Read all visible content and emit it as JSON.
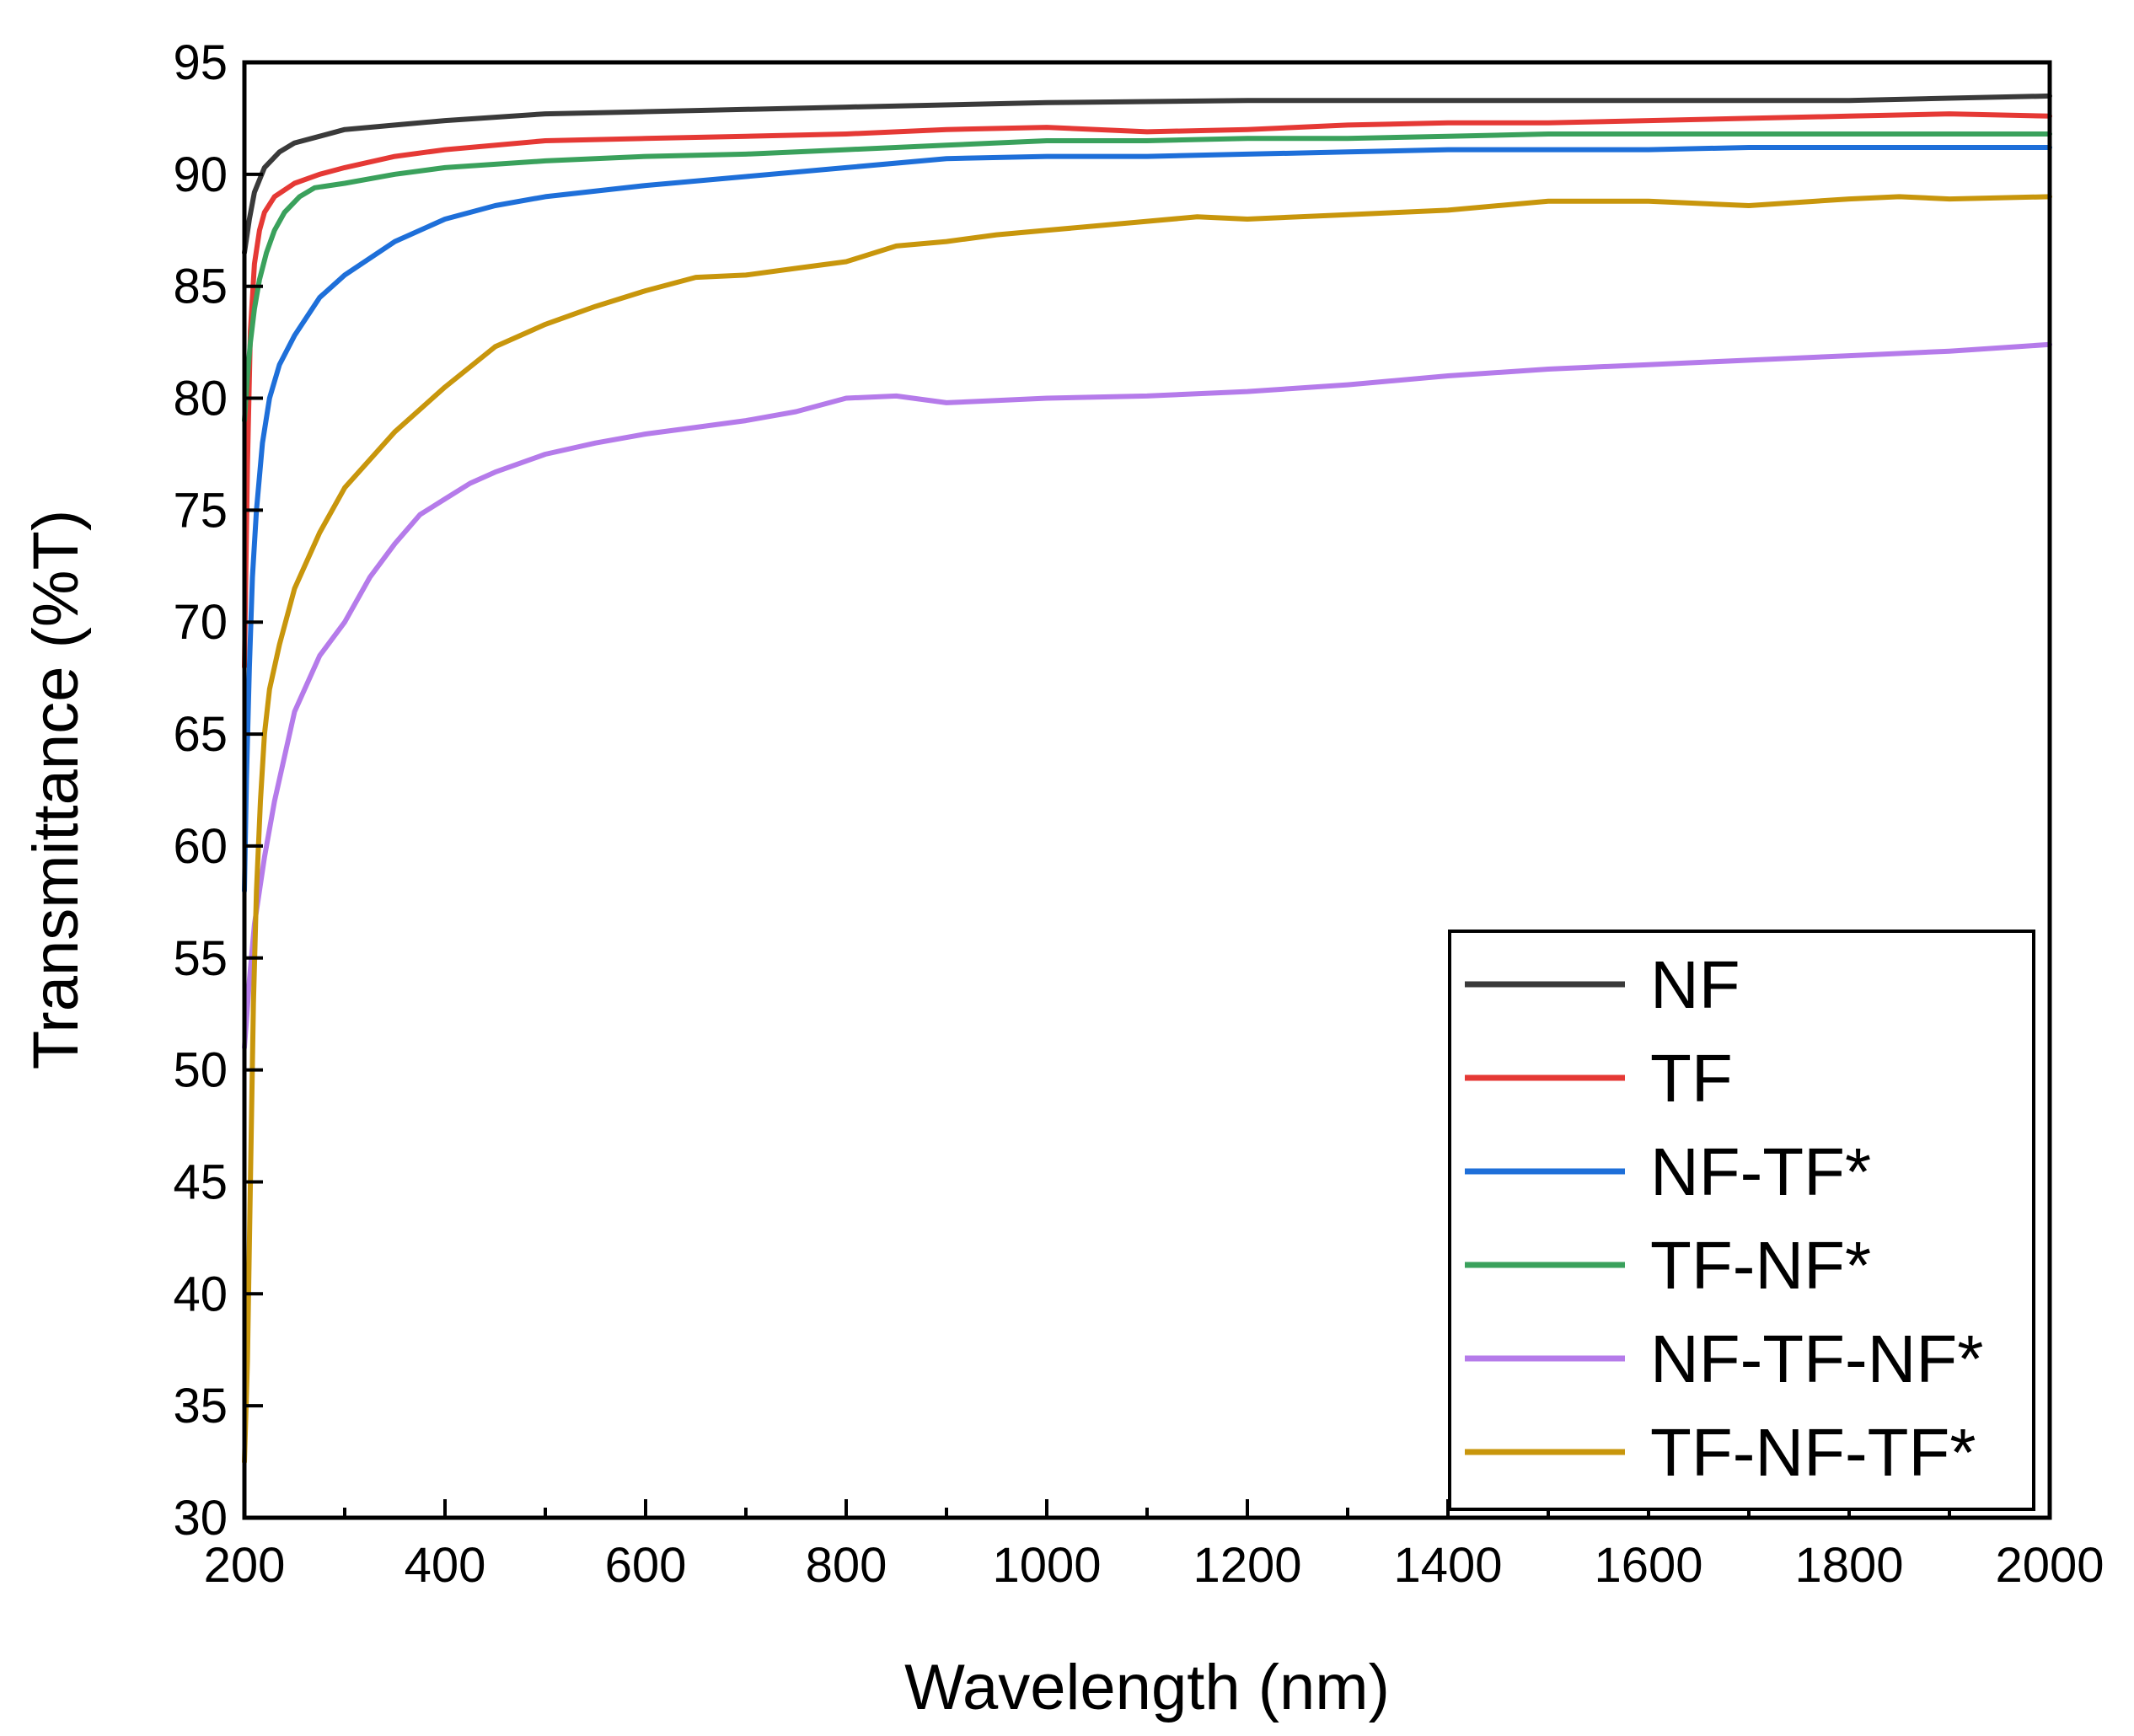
{
  "chart_data": {
    "type": "line",
    "title": "",
    "xlabel": "Wavelength (nm)",
    "ylabel": "Transmittance (%T)",
    "xlim": [
      200,
      2000
    ],
    "ylim": [
      30,
      95
    ],
    "xticks": [
      200,
      400,
      600,
      800,
      1000,
      1200,
      1400,
      1600,
      1800,
      2000
    ],
    "yticks": [
      30,
      35,
      40,
      45,
      50,
      55,
      60,
      65,
      70,
      75,
      80,
      85,
      90,
      95
    ],
    "grid": false,
    "legend_position": "bottom-right",
    "series": [
      {
        "name": "NF",
        "color": "#3a3a3a",
        "x": [
          200,
          205,
          210,
          220,
          235,
          250,
          275,
          300,
          350,
          400,
          500,
          600,
          700,
          800,
          1000,
          1200,
          1400,
          1600,
          1800,
          1900,
          2000
        ],
        "y": [
          86.5,
          88.0,
          89.2,
          90.3,
          91.0,
          91.4,
          91.7,
          92.0,
          92.2,
          92.4,
          92.7,
          92.8,
          92.9,
          93.0,
          93.2,
          93.3,
          93.3,
          93.3,
          93.3,
          93.4,
          93.5
        ]
      },
      {
        "name": "TF",
        "color": "#e53935",
        "x": [
          200,
          203,
          206,
          210,
          215,
          220,
          230,
          250,
          275,
          300,
          350,
          400,
          500,
          600,
          700,
          800,
          900,
          1000,
          1100,
          1200,
          1300,
          1400,
          1500,
          1600,
          1700,
          1800,
          1900,
          2000
        ],
        "y": [
          68.0,
          77.0,
          83.0,
          86.0,
          87.5,
          88.3,
          89.0,
          89.6,
          90.0,
          90.3,
          90.8,
          91.1,
          91.5,
          91.6,
          91.7,
          91.8,
          92.0,
          92.1,
          91.9,
          92.0,
          92.2,
          92.3,
          92.3,
          92.4,
          92.5,
          92.6,
          92.7,
          92.6
        ]
      },
      {
        "name": "NF-TF*",
        "color": "#1e6fd9",
        "x": [
          200,
          202,
          205,
          208,
          212,
          218,
          225,
          235,
          250,
          275,
          300,
          350,
          400,
          450,
          500,
          600,
          700,
          800,
          900,
          1000,
          1100,
          1200,
          1300,
          1400,
          1500,
          1600,
          1700,
          1800,
          1900,
          2000
        ],
        "y": [
          58.0,
          63.0,
          68.0,
          72.0,
          75.0,
          78.0,
          80.0,
          81.5,
          82.8,
          84.5,
          85.5,
          87.0,
          88.0,
          88.6,
          89.0,
          89.5,
          89.9,
          90.3,
          90.7,
          90.8,
          90.8,
          90.9,
          91.0,
          91.1,
          91.1,
          91.1,
          91.2,
          91.2,
          91.2,
          91.2
        ]
      },
      {
        "name": "TF-NF*",
        "color": "#3aa15c",
        "x": [
          200,
          203,
          206,
          210,
          215,
          222,
          230,
          240,
          255,
          270,
          300,
          350,
          400,
          500,
          600,
          700,
          800,
          900,
          1000,
          1100,
          1200,
          1300,
          1400,
          1500,
          1600,
          1700,
          1800,
          1900,
          2000
        ],
        "y": [
          79.0,
          81.0,
          82.5,
          84.0,
          85.3,
          86.5,
          87.5,
          88.3,
          89.0,
          89.4,
          89.6,
          90.0,
          90.3,
          90.6,
          90.8,
          90.9,
          91.1,
          91.3,
          91.5,
          91.5,
          91.6,
          91.6,
          91.7,
          91.8,
          91.8,
          91.8,
          91.8,
          91.8,
          91.8
        ]
      },
      {
        "name": "NF-TF-NF*",
        "color": "#b57bea",
        "x": [
          200,
          205,
          210,
          220,
          230,
          250,
          275,
          300,
          325,
          350,
          375,
          400,
          425,
          450,
          500,
          550,
          600,
          650,
          700,
          750,
          800,
          850,
          900,
          950,
          1000,
          1100,
          1200,
          1300,
          1400,
          1500,
          1600,
          1700,
          1800,
          1900,
          2000
        ],
        "y": [
          51.0,
          54.0,
          56.5,
          59.5,
          62.0,
          66.0,
          68.5,
          70.0,
          72.0,
          73.5,
          74.8,
          75.5,
          76.2,
          76.7,
          77.5,
          78.0,
          78.4,
          78.7,
          79.0,
          79.4,
          80.0,
          80.1,
          79.8,
          79.9,
          80.0,
          80.1,
          80.3,
          80.6,
          81.0,
          81.3,
          81.5,
          81.7,
          81.9,
          82.1,
          82.4
        ]
      },
      {
        "name": "TF-NF-TF*",
        "color": "#c8960c",
        "x": [
          200,
          203,
          206,
          209,
          212,
          216,
          220,
          225,
          235,
          250,
          275,
          300,
          350,
          400,
          450,
          500,
          550,
          600,
          650,
          700,
          750,
          800,
          850,
          900,
          950,
          1000,
          1100,
          1150,
          1200,
          1300,
          1400,
          1500,
          1600,
          1700,
          1800,
          1850,
          1900,
          2000
        ],
        "y": [
          32.5,
          37.0,
          45.0,
          53.0,
          58.0,
          62.0,
          65.0,
          67.0,
          69.0,
          71.5,
          74.0,
          76.0,
          78.5,
          80.5,
          82.3,
          83.3,
          84.1,
          84.8,
          85.4,
          85.5,
          85.8,
          86.1,
          86.8,
          87.0,
          87.3,
          87.5,
          87.9,
          88.1,
          88.0,
          88.2,
          88.4,
          88.8,
          88.8,
          88.6,
          88.9,
          89.0,
          88.9,
          89.0
        ]
      }
    ]
  }
}
